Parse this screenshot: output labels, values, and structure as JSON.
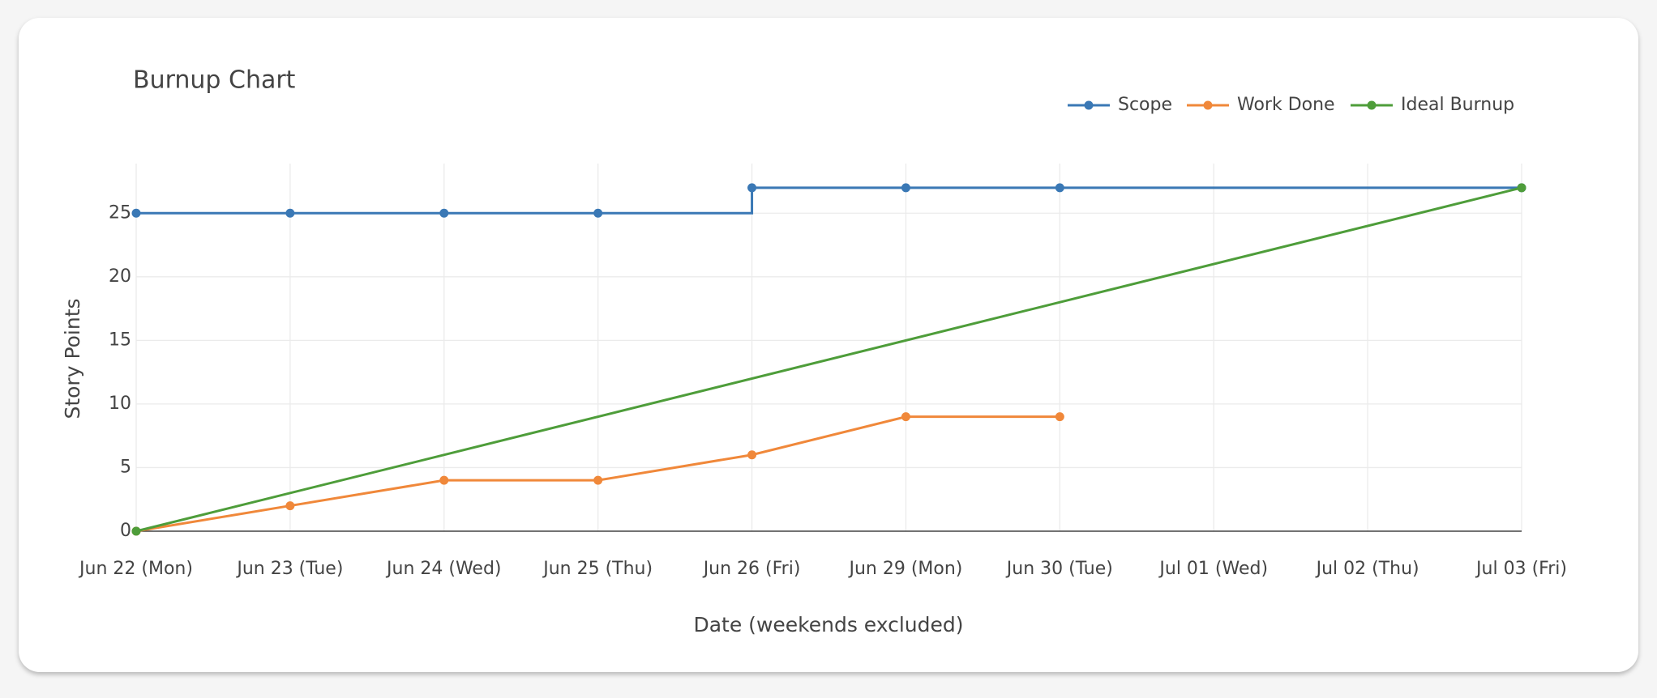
{
  "chart_data": {
    "type": "line",
    "title": "Burnup Chart",
    "x_label": "Date (weekends excluded)",
    "y_label": "Story Points",
    "categories": [
      "Jun 22 (Mon)",
      "Jun 23 (Tue)",
      "Jun 24 (Wed)",
      "Jun 25 (Thu)",
      "Jun 26 (Fri)",
      "Jun 29 (Mon)",
      "Jun 30 (Tue)",
      "Jul 01 (Wed)",
      "Jul 02 (Thu)",
      "Jul 03 (Fri)"
    ],
    "series": [
      {
        "name": "Scope",
        "color": "#3a78b5",
        "shape": "hv",
        "values": [
          25,
          25,
          25,
          25,
          27,
          27,
          27,
          null,
          null,
          27
        ]
      },
      {
        "name": "Work Done",
        "color": "#f0883a",
        "shape": "linear",
        "values": [
          0,
          2,
          4,
          4,
          6,
          9,
          9,
          null,
          null,
          null
        ]
      },
      {
        "name": "Ideal Burnup",
        "color": "#4e9d3a",
        "shape": "linear",
        "values": [
          0,
          null,
          null,
          null,
          null,
          null,
          null,
          null,
          null,
          27
        ]
      }
    ],
    "connectgaps": true,
    "ylim": [
      0,
      28.9
    ],
    "yticks": [
      0,
      5,
      10,
      15,
      20,
      25
    ],
    "grid": true,
    "legend": "top-right"
  }
}
